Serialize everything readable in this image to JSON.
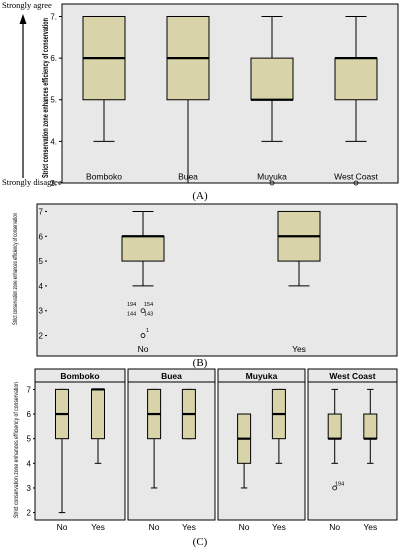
{
  "colors": {
    "box_fill": "#d8d3a8",
    "plot_bg": "#e8e8e8",
    "median": "#000000"
  },
  "chart_data": [
    {
      "type": "box",
      "panel_caption": "(A)",
      "ylabel": "Strict conservation zone enhances efficiency of conservation",
      "y_extreme_labels": {
        "top": "Strongly agree",
        "bottom": "Strongly disagree"
      },
      "ylim": [
        3,
        7.3
      ],
      "yticks": [
        "3.",
        "4.",
        "5.",
        "6.",
        "7."
      ],
      "grid": false,
      "categories": [
        "Bomboko",
        "Buea",
        "Muyuka",
        "West Coast"
      ],
      "boxes": [
        {
          "min": 4,
          "q1": 5,
          "median": 6,
          "q3": 7,
          "max": 7,
          "outliers": []
        },
        {
          "min": 3,
          "q1": 5,
          "median": 6,
          "q3": 7,
          "max": 7,
          "outliers": []
        },
        {
          "min": 4,
          "q1": 5,
          "median": 5,
          "q3": 6,
          "max": 7,
          "outliers": [
            3
          ]
        },
        {
          "min": 4,
          "q1": 5,
          "median": 6,
          "q3": 6,
          "max": 7,
          "outliers": [
            3
          ]
        }
      ]
    },
    {
      "type": "box",
      "panel_caption": "(B)",
      "ylabel": "Strict conservation zone enhances efficiency of conservation",
      "ylim": [
        1.7,
        7.3
      ],
      "yticks": [
        "2",
        "3",
        "4",
        "5",
        "6",
        "7"
      ],
      "grid": false,
      "categories": [
        "No",
        "Yes"
      ],
      "boxes": [
        {
          "min": 4,
          "q1": 5,
          "median": 6,
          "q3": 6,
          "max": 7,
          "outliers": [
            3,
            2
          ]
        },
        {
          "min": 4,
          "q1": 5,
          "median": 6,
          "q3": 7,
          "max": 7,
          "outliers": []
        }
      ],
      "outlier_labels": [
        "194",
        "154",
        "144",
        "143",
        "1"
      ]
    },
    {
      "type": "box",
      "panel_caption": "(C)",
      "ylabel": "Strict conservation zone enhances efficiency of conservation",
      "ylim": [
        1.7,
        7.3
      ],
      "yticks": [
        "2",
        "3",
        "4",
        "5",
        "6",
        "7"
      ],
      "grid": false,
      "facets": [
        {
          "title": "Bomboko",
          "categories": [
            "No",
            "Yes"
          ],
          "boxes": [
            {
              "min": 2,
              "q1": 5,
              "median": 6,
              "q3": 7,
              "max": 7,
              "outliers": []
            },
            {
              "min": 4,
              "q1": 5,
              "median": 7,
              "q3": 7,
              "max": 7,
              "outliers": []
            }
          ]
        },
        {
          "title": "Buea",
          "categories": [
            "No",
            "Yes"
          ],
          "boxes": [
            {
              "min": 3,
              "q1": 5,
              "median": 6,
              "q3": 7,
              "max": 7,
              "outliers": []
            },
            {
              "min": 5,
              "q1": 5,
              "median": 6,
              "q3": 7,
              "max": 7,
              "outliers": []
            }
          ]
        },
        {
          "title": "Muyuka",
          "categories": [
            "No",
            "Yes"
          ],
          "boxes": [
            {
              "min": 3,
              "q1": 4,
              "median": 5,
              "q3": 6,
              "max": 6,
              "outliers": []
            },
            {
              "min": 4,
              "q1": 5,
              "median": 6,
              "q3": 7,
              "max": 7,
              "outliers": []
            }
          ]
        },
        {
          "title": "West Coast",
          "categories": [
            "No",
            "Yes"
          ],
          "boxes": [
            {
              "min": 4,
              "q1": 5,
              "median": 5,
              "q3": 6,
              "max": 7,
              "outliers": [
                3
              ]
            },
            {
              "min": 4,
              "q1": 5,
              "median": 5,
              "q3": 6,
              "max": 7,
              "outliers": []
            }
          ]
        }
      ],
      "outlier_labels": [
        "194"
      ]
    }
  ]
}
